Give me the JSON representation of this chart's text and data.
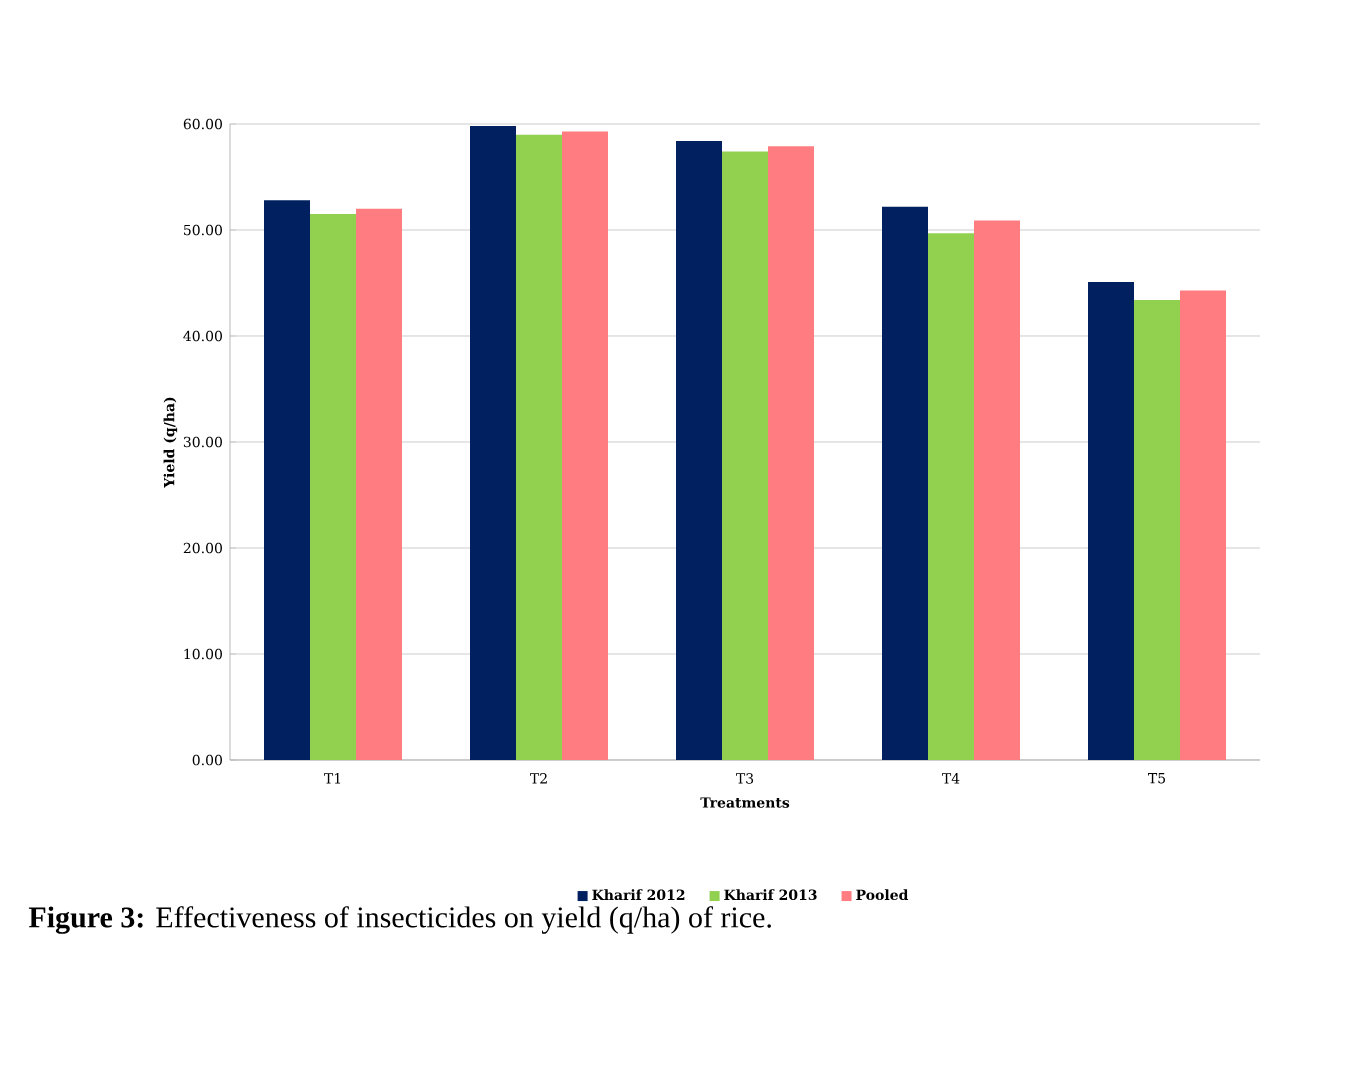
{
  "chart_data": {
    "type": "bar",
    "xlabel": "Treatments",
    "ylabel": "Yield (q/ha)",
    "categories": [
      "T1",
      "T2",
      "T3",
      "T4",
      "T5"
    ],
    "series": [
      {
        "name": "Kharif 2012",
        "color": "#002060",
        "values": [
          52.8,
          59.8,
          58.4,
          52.2,
          45.1
        ]
      },
      {
        "name": "Kharif 2013",
        "color": "#92d050",
        "values": [
          51.5,
          59.0,
          57.4,
          49.7,
          43.4
        ]
      },
      {
        "name": "Pooled",
        "color": "#ff7c80",
        "values": [
          52.0,
          59.3,
          57.9,
          50.9,
          44.3
        ]
      }
    ],
    "ylim": [
      0,
      60
    ],
    "yticks": [
      {
        "value": 0,
        "label": "0.00"
      },
      {
        "value": 10,
        "label": "10.00"
      },
      {
        "value": 20,
        "label": "20.00"
      },
      {
        "value": 30,
        "label": "30.00"
      },
      {
        "value": 40,
        "label": "40.00"
      },
      {
        "value": 50,
        "label": "50.00"
      },
      {
        "value": 60,
        "label": "60.00"
      }
    ],
    "grid": "y",
    "legend": "bottom",
    "annotations": [
      "**Figure 3:** Effectiveness of insecticides on yield (q/ha) of rice."
    ]
  }
}
